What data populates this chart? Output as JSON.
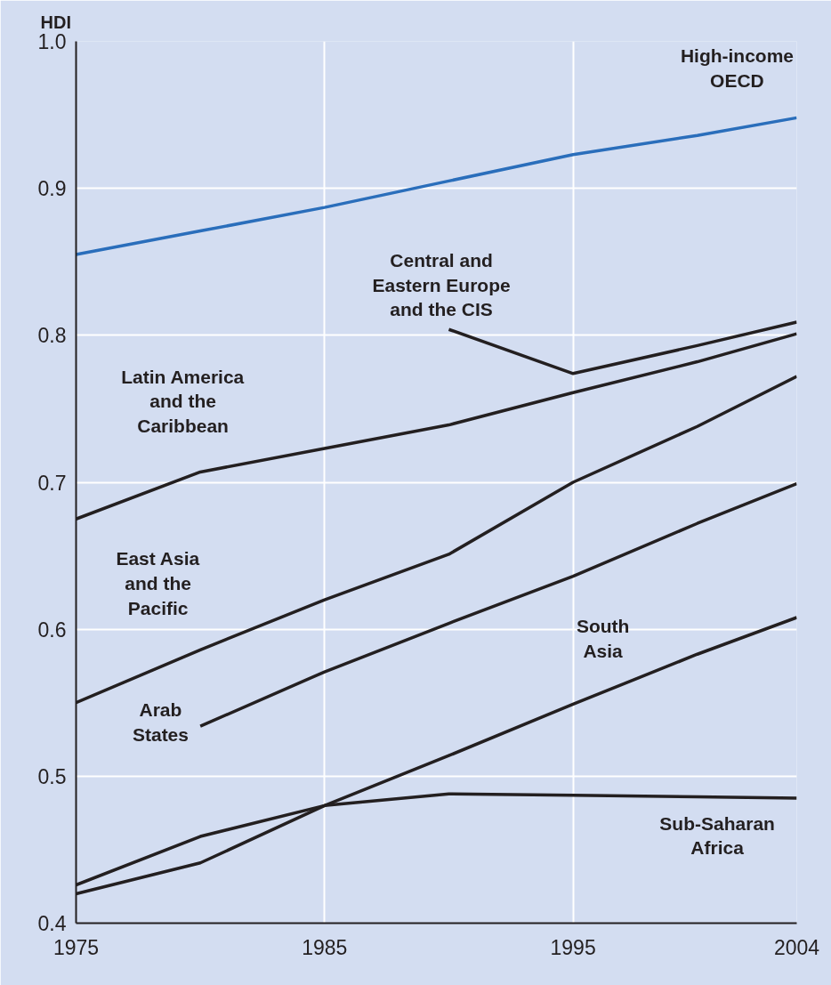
{
  "chart_data": {
    "type": "line",
    "ylabel": "HDI",
    "x": [
      1975,
      1980,
      1985,
      1990,
      1995,
      2000,
      2004
    ],
    "xlim": [
      1975,
      2004
    ],
    "xticks": [
      1975,
      1985,
      1995,
      2004
    ],
    "ylim": [
      0.4,
      1.0
    ],
    "yticks": [
      {
        "value": 0.4,
        "label": "0.4"
      },
      {
        "value": 0.5,
        "label": "0.5"
      },
      {
        "value": 0.6,
        "label": "0.6"
      },
      {
        "value": 0.7,
        "label": "0.7"
      },
      {
        "value": 0.8,
        "label": "0.8"
      },
      {
        "value": 0.9,
        "label": "0.9"
      },
      {
        "value": 1.0,
        "label": "1.0"
      }
    ],
    "grid": true,
    "legend": false,
    "marker": "none",
    "line_style": "solid",
    "series": [
      {
        "name": "High-income OECD",
        "color": "#2a6ebb",
        "values": [
          0.855,
          0.871,
          0.887,
          0.905,
          0.923,
          0.936,
          0.948
        ]
      },
      {
        "name": "Central and Eastern Europe and the CIS",
        "color": "#231f20",
        "values": [
          null,
          null,
          null,
          0.804,
          0.774,
          0.793,
          0.809
        ]
      },
      {
        "name": "Latin America and the Caribbean",
        "color": "#231f20",
        "values": [
          0.675,
          0.707,
          0.723,
          0.739,
          0.761,
          0.782,
          0.801
        ]
      },
      {
        "name": "East Asia and the Pacific",
        "color": "#231f20",
        "values": [
          0.55,
          0.586,
          0.62,
          0.651,
          0.7,
          0.738,
          0.772
        ]
      },
      {
        "name": "Arab States",
        "color": "#231f20",
        "values": [
          null,
          0.534,
          0.571,
          0.604,
          0.636,
          0.672,
          0.699
        ]
      },
      {
        "name": "South Asia",
        "color": "#231f20",
        "values": [
          0.42,
          0.441,
          0.48,
          0.514,
          0.549,
          0.583,
          0.608
        ]
      },
      {
        "name": "Sub-Saharan Africa",
        "color": "#231f20",
        "values": [
          0.426,
          0.459,
          0.48,
          0.488,
          0.487,
          0.486,
          0.485
        ]
      }
    ]
  }
}
